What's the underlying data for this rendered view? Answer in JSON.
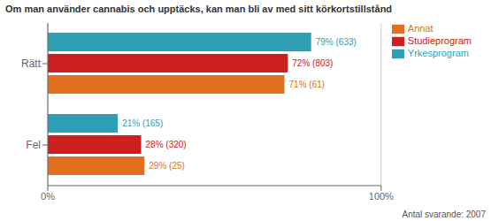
{
  "chart_data": {
    "type": "bar",
    "orientation": "horizontal",
    "title": "Om man använder cannabis och upptäcks, kan man bli av med sitt körkortstillstånd",
    "categories": [
      "Rätt",
      "Fel"
    ],
    "series": [
      {
        "name": "Yrkesprogram",
        "color": "#2e9fb5",
        "values": [
          79,
          21
        ],
        "value_labels": [
          "79% (633)",
          "21% (165)"
        ]
      },
      {
        "name": "Studieprogram",
        "color": "#cc2020",
        "values": [
          72,
          28
        ],
        "value_labels": [
          "72% (803)",
          "28% (320)"
        ]
      },
      {
        "name": "Annat",
        "color": "#e07020",
        "values": [
          71,
          29
        ],
        "value_labels": [
          "71% (61)",
          "29% (25)"
        ]
      }
    ],
    "xlim": [
      0,
      100
    ],
    "xticks": [
      {
        "value": 0,
        "label": "0%"
      },
      {
        "value": 100,
        "label": "100%"
      }
    ],
    "grid": true,
    "legend": "right",
    "data_labels": true,
    "annotations": [
      "Antal svarande: 2007"
    ]
  }
}
